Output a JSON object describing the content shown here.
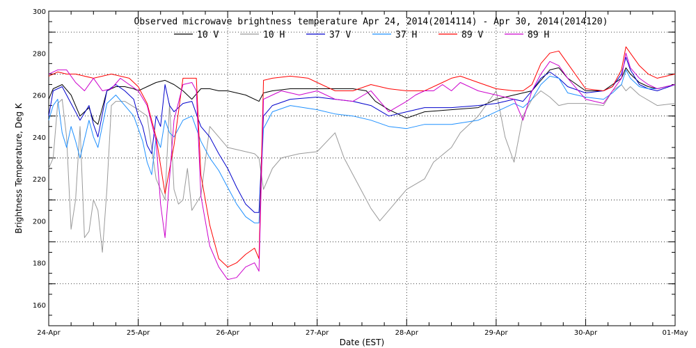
{
  "chart_data": {
    "type": "line",
    "title": "Observed microwave brightness temperature Apr 24, 2014(2014114) - Apr 30, 2014(2014120)",
    "xlabel": "Date (EST)",
    "ylabel": "Brightness Temperature, Deg K",
    "x_tick_labels": [
      "24-Apr",
      "25-Apr",
      "26-Apr",
      "27-Apr",
      "28-Apr",
      "29-Apr",
      "30-Apr",
      "01-May"
    ],
    "xlim": [
      0,
      7
    ],
    "ylim": [
      150,
      300
    ],
    "y_ticks": [
      160,
      180,
      200,
      220,
      240,
      260,
      280,
      300
    ],
    "grid": true,
    "legend_position": "top-center",
    "series": [
      {
        "name": "10 V",
        "color": "#000000",
        "x": [
          0,
          0.05,
          0.15,
          0.25,
          0.35,
          0.45,
          0.5,
          0.55,
          0.65,
          0.75,
          0.85,
          0.95,
          1.0,
          1.1,
          1.2,
          1.3,
          1.4,
          1.5,
          1.6,
          1.7,
          1.8,
          1.9,
          2.0,
          2.2,
          2.35,
          2.4,
          2.5,
          2.7,
          3.0,
          3.2,
          3.4,
          3.55,
          3.65,
          3.8,
          4.0,
          4.2,
          4.5,
          4.8,
          5.0,
          5.2,
          5.3,
          5.4,
          5.5,
          5.6,
          5.7,
          5.8,
          6.0,
          6.2,
          6.3,
          6.4,
          6.45,
          6.5,
          6.6,
          6.7,
          6.8,
          7.0
        ],
        "y": [
          258,
          263,
          265,
          260,
          250,
          254,
          248,
          246,
          262,
          264,
          264,
          263,
          262,
          264,
          266,
          267,
          265,
          262,
          258,
          263,
          263,
          262,
          262,
          260,
          257,
          261,
          262,
          263,
          263,
          263,
          263,
          262,
          257,
          253,
          249,
          252,
          253,
          254,
          258,
          260,
          261,
          262,
          267,
          272,
          273,
          268,
          262,
          262,
          265,
          268,
          273,
          270,
          266,
          264,
          263,
          265
        ]
      },
      {
        "name": "10 H",
        "color": "#999999",
        "x": [
          0,
          0.05,
          0.1,
          0.15,
          0.2,
          0.25,
          0.3,
          0.35,
          0.4,
          0.45,
          0.5,
          0.55,
          0.6,
          0.65,
          0.7,
          0.75,
          0.85,
          1.0,
          1.1,
          1.2,
          1.3,
          1.35,
          1.4,
          1.45,
          1.5,
          1.55,
          1.6,
          1.7,
          1.8,
          1.9,
          2.0,
          2.2,
          2.3,
          2.35,
          2.4,
          2.5,
          2.6,
          2.8,
          3.0,
          3.2,
          3.3,
          3.4,
          3.5,
          3.6,
          3.7,
          3.8,
          3.9,
          4.0,
          4.2,
          4.3,
          4.5,
          4.6,
          4.8,
          5.0,
          5.1,
          5.2,
          5.3,
          5.4,
          5.5,
          5.6,
          5.7,
          5.8,
          6.0,
          6.2,
          6.3,
          6.4,
          6.45,
          6.5,
          6.6,
          6.8,
          7.0
        ],
        "y": [
          225,
          230,
          256,
          258,
          240,
          196,
          210,
          245,
          192,
          195,
          210,
          205,
          185,
          215,
          255,
          257,
          257,
          253,
          250,
          220,
          210,
          256,
          215,
          208,
          210,
          225,
          205,
          212,
          245,
          240,
          235,
          233,
          232,
          230,
          215,
          225,
          230,
          232,
          233,
          242,
          230,
          222,
          214,
          206,
          200,
          205,
          210,
          215,
          220,
          228,
          235,
          242,
          250,
          262,
          240,
          228,
          250,
          258,
          262,
          259,
          255,
          256,
          256,
          255,
          262,
          265,
          262,
          264,
          260,
          255,
          256
        ]
      },
      {
        "name": "37 V",
        "color": "#0000cc",
        "x": [
          0,
          0.05,
          0.15,
          0.25,
          0.35,
          0.45,
          0.5,
          0.55,
          0.65,
          0.75,
          0.85,
          0.95,
          1.0,
          1.05,
          1.1,
          1.15,
          1.2,
          1.25,
          1.3,
          1.35,
          1.4,
          1.5,
          1.6,
          1.7,
          1.8,
          1.9,
          2.0,
          2.1,
          2.2,
          2.3,
          2.35,
          2.4,
          2.5,
          2.7,
          3.0,
          3.2,
          3.4,
          3.6,
          3.8,
          4.0,
          4.2,
          4.5,
          4.8,
          5.0,
          5.2,
          5.3,
          5.4,
          5.5,
          5.6,
          5.7,
          5.8,
          6.0,
          6.2,
          6.3,
          6.4,
          6.45,
          6.5,
          6.6,
          6.7,
          6.8,
          7.0
        ],
        "y": [
          250,
          262,
          264,
          256,
          248,
          255,
          246,
          240,
          262,
          265,
          262,
          258,
          250,
          245,
          236,
          232,
          250,
          245,
          265,
          255,
          252,
          256,
          257,
          245,
          240,
          232,
          225,
          216,
          208,
          204,
          204,
          250,
          255,
          258,
          259,
          258,
          257,
          255,
          250,
          252,
          254,
          254,
          255,
          256,
          258,
          257,
          262,
          268,
          271,
          268,
          264,
          261,
          262,
          264,
          270,
          278,
          272,
          265,
          263,
          262,
          265
        ]
      },
      {
        "name": "37 H",
        "color": "#1e90ff",
        "x": [
          0,
          0.05,
          0.1,
          0.15,
          0.2,
          0.25,
          0.3,
          0.35,
          0.45,
          0.5,
          0.55,
          0.65,
          0.75,
          0.85,
          0.95,
          1.0,
          1.05,
          1.1,
          1.15,
          1.2,
          1.25,
          1.3,
          1.35,
          1.4,
          1.5,
          1.6,
          1.7,
          1.8,
          1.9,
          2.0,
          2.1,
          2.2,
          2.3,
          2.35,
          2.4,
          2.5,
          2.7,
          3.0,
          3.2,
          3.4,
          3.6,
          3.8,
          4.0,
          4.2,
          4.5,
          4.8,
          5.0,
          5.2,
          5.3,
          5.4,
          5.5,
          5.6,
          5.7,
          5.8,
          6.0,
          6.2,
          6.3,
          6.4,
          6.45,
          6.5,
          6.6,
          6.7,
          6.8,
          7.0
        ],
        "y": [
          248,
          255,
          258,
          242,
          235,
          245,
          238,
          230,
          248,
          240,
          235,
          256,
          260,
          255,
          250,
          244,
          238,
          228,
          222,
          240,
          235,
          248,
          242,
          240,
          248,
          250,
          238,
          230,
          224,
          216,
          208,
          202,
          199,
          199,
          244,
          252,
          255,
          253,
          251,
          250,
          248,
          245,
          244,
          246,
          246,
          248,
          252,
          256,
          254,
          258,
          265,
          269,
          268,
          261,
          259,
          258,
          261,
          265,
          272,
          268,
          264,
          263,
          263,
          265
        ]
      },
      {
        "name": "89 V",
        "color": "#ff0000",
        "x": [
          0,
          0.1,
          0.2,
          0.3,
          0.5,
          0.7,
          0.9,
          1.0,
          1.1,
          1.2,
          1.3,
          1.4,
          1.5,
          1.6,
          1.65,
          1.7,
          1.8,
          1.9,
          2.0,
          2.1,
          2.2,
          2.3,
          2.35,
          2.4,
          2.5,
          2.7,
          2.9,
          3.0,
          3.2,
          3.4,
          3.6,
          3.8,
          4.0,
          4.2,
          4.4,
          4.5,
          4.6,
          4.8,
          5.0,
          5.2,
          5.3,
          5.4,
          5.5,
          5.6,
          5.7,
          5.8,
          6.0,
          6.2,
          6.3,
          6.4,
          6.45,
          6.5,
          6.6,
          6.7,
          6.8,
          7.0
        ],
        "y": [
          269,
          271,
          270,
          270,
          268,
          270,
          268,
          264,
          256,
          240,
          213,
          236,
          268,
          268,
          268,
          222,
          198,
          182,
          178,
          180,
          184,
          187,
          182,
          267,
          268,
          269,
          268,
          266,
          262,
          262,
          265,
          263,
          262,
          262,
          266,
          268,
          269,
          266,
          263,
          262,
          262,
          265,
          275,
          280,
          281,
          275,
          263,
          262,
          264,
          272,
          283,
          280,
          274,
          270,
          268,
          270
        ]
      },
      {
        "name": "89 H",
        "color": "#cc00cc",
        "x": [
          0,
          0.1,
          0.2,
          0.3,
          0.4,
          0.5,
          0.6,
          0.7,
          0.8,
          0.9,
          1.0,
          1.1,
          1.2,
          1.25,
          1.3,
          1.4,
          1.5,
          1.6,
          1.65,
          1.7,
          1.8,
          1.9,
          2.0,
          2.1,
          2.2,
          2.3,
          2.35,
          2.4,
          2.5,
          2.6,
          2.8,
          3.0,
          3.2,
          3.4,
          3.6,
          3.8,
          4.0,
          4.1,
          4.2,
          4.3,
          4.4,
          4.5,
          4.6,
          4.8,
          5.0,
          5.2,
          5.3,
          5.4,
          5.5,
          5.6,
          5.7,
          5.8,
          6.0,
          6.2,
          6.3,
          6.4,
          6.45,
          6.5,
          6.6,
          6.7,
          6.8,
          7.0
        ],
        "y": [
          270,
          272,
          272,
          266,
          262,
          268,
          262,
          263,
          268,
          265,
          262,
          255,
          238,
          208,
          192,
          248,
          265,
          266,
          262,
          212,
          188,
          178,
          172,
          173,
          178,
          180,
          176,
          258,
          260,
          262,
          260,
          262,
          258,
          257,
          262,
          252,
          257,
          260,
          262,
          262,
          265,
          262,
          266,
          262,
          260,
          258,
          248,
          262,
          270,
          276,
          274,
          268,
          258,
          256,
          262,
          268,
          280,
          273,
          268,
          265,
          263,
          265
        ]
      }
    ]
  }
}
